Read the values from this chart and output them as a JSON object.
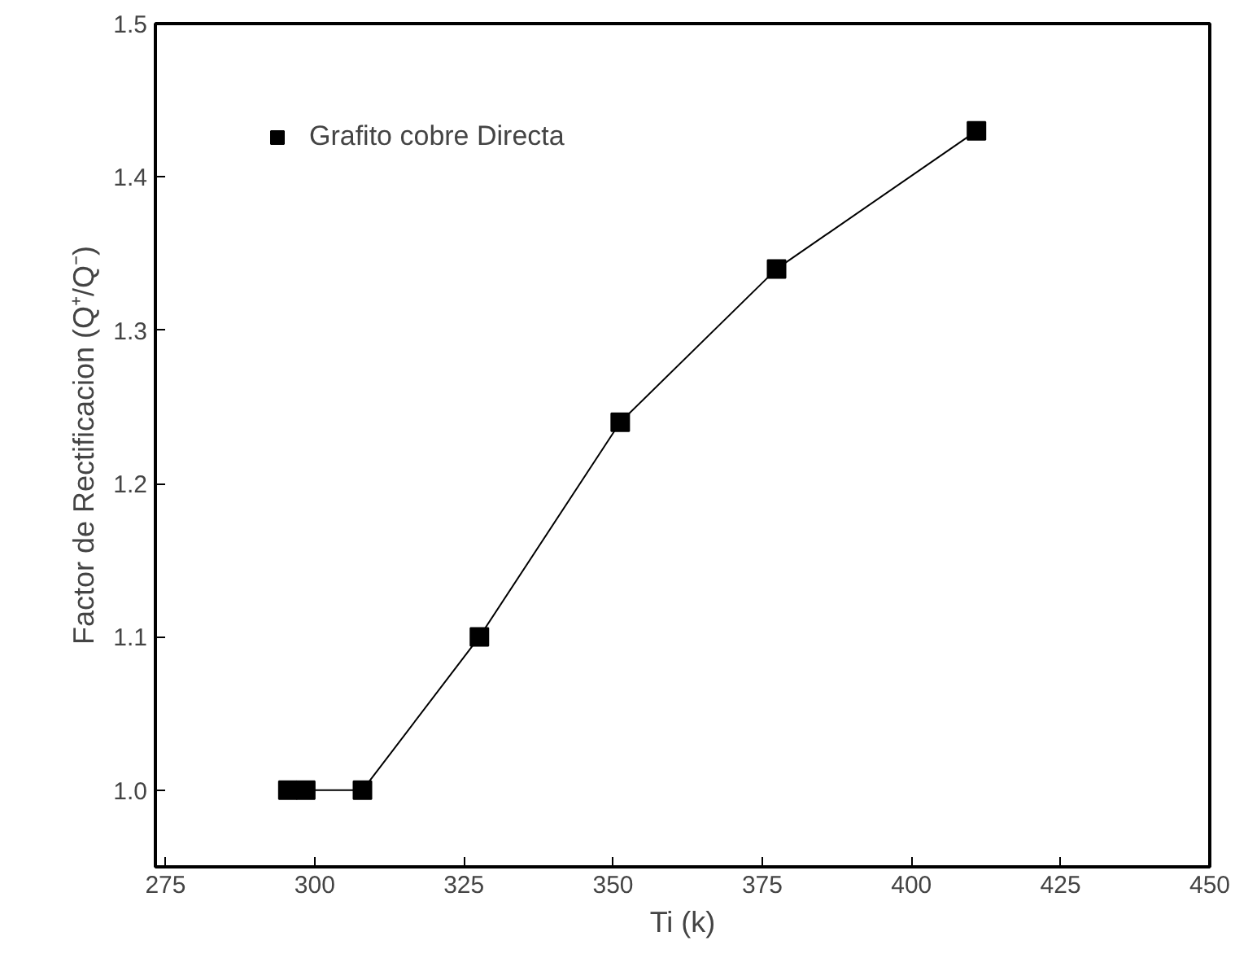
{
  "chart_data": {
    "type": "line",
    "xlabel": "Ti (k)",
    "ylabel": "Factor de Rectificacion (Q⁺/Q⁻)",
    "x": [
      295.5,
      298.5,
      308,
      327.6,
      351.2,
      377.4,
      410.9
    ],
    "series": [
      {
        "name": "Grafito cobre Directa",
        "color": "#000000",
        "values": [
          1.0,
          1.0,
          1.0,
          1.1,
          1.24,
          1.34,
          1.43
        ]
      }
    ],
    "xlim": [
      273.3,
      450
    ],
    "xticks": [
      275,
      300,
      325,
      350,
      375,
      400,
      425,
      450
    ],
    "ylim": [
      0.95,
      1.5
    ],
    "yticks": [
      {
        "value": 1.0,
        "label": "1.0"
      },
      1.1,
      1.2,
      1.3,
      1.4,
      1.5
    ],
    "grid": false,
    "legend": "top left",
    "marker": "square",
    "line_style": "solid"
  }
}
